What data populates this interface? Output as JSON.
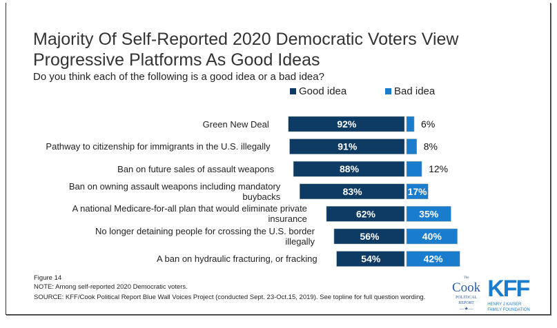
{
  "title": "Majority Of Self-Reported 2020 Democratic Voters View Progressive Platforms As Good Ideas",
  "subtitle": "Do you think each of the following is a good idea or a bad idea?",
  "colors": {
    "good": "#0d3b63",
    "bad": "#1a7ccc"
  },
  "chart_data": {
    "type": "bar",
    "orientation": "horizontal-diverging",
    "categories": [
      "Green New Deal",
      "Pathway to citizenship for immigrants in the U.S. illegally",
      "Ban on future sales of assault weapons",
      "Ban on owning assault weapons including mandatory buybacks",
      "A national Medicare-for-all plan that would eliminate private insurance",
      "No longer detaining people for crossing the U.S. border illegally",
      "A ban on hydraulic fracturing, or fracking"
    ],
    "series": [
      {
        "name": "Good idea",
        "values": [
          92,
          91,
          88,
          83,
          62,
          56,
          54
        ],
        "labels": [
          "92%",
          "91%",
          "88%",
          "83%",
          "62%",
          "56%",
          "54%"
        ]
      },
      {
        "name": "Bad idea",
        "values": [
          6,
          8,
          12,
          17,
          35,
          40,
          42
        ],
        "labels": [
          "6%",
          "8%",
          "12%",
          "17%",
          "35%",
          "40%",
          "42%"
        ]
      }
    ],
    "legend": "top"
  },
  "footer": {
    "figure": "Figure 14",
    "note": "NOTE: Among self-reported 2020 Democratic voters.",
    "source": "SOURCE: KFF/Cook Political Report Blue Wall Voices Project (conducted Sept. 23-Oct.15, 2019). See topline for full question wording."
  },
  "logos": {
    "cook": "The Cook Political Report",
    "kff": "KFF",
    "kff_sub": "Henry J Kaiser Family Foundation"
  }
}
